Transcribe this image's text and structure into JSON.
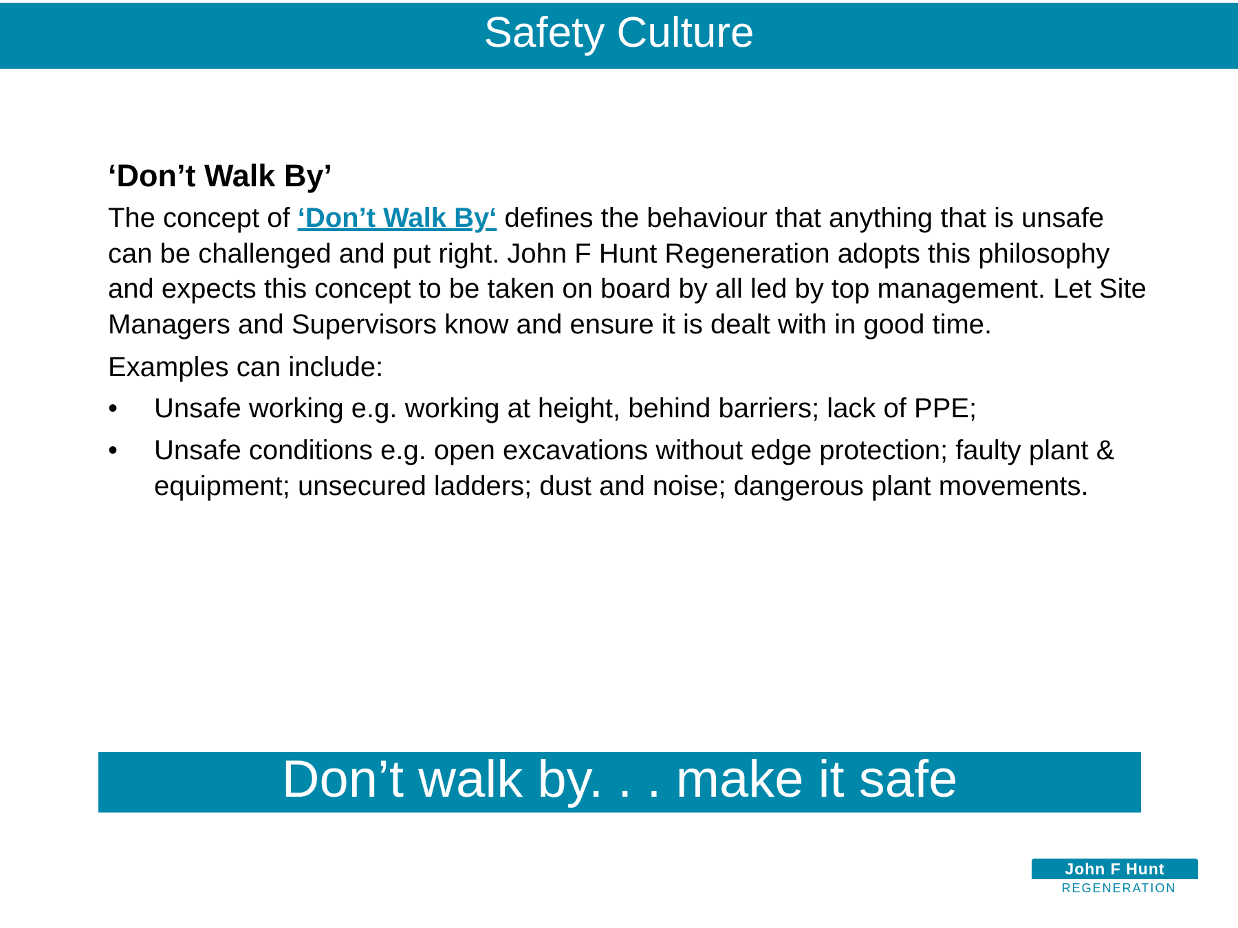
{
  "header": {
    "title": "Safety Culture"
  },
  "section": {
    "heading": "‘Don’t Walk By’",
    "paragraph_prefix": "The concept of ",
    "paragraph_link": "‘Don’t Walk By‘",
    "paragraph_suffix": " defines the behaviour that anything that is unsafe can be challenged and put right. John F Hunt Regeneration adopts this philosophy and expects this concept to be taken on board by all led by top management. Let Site Managers and Supervisors know and ensure it is dealt with in good time.",
    "examples_intro": "Examples can include:",
    "bullet_symbol": "•",
    "bullets": [
      "Unsafe working e.g. working at height, behind barriers; lack of PPE;",
      "Unsafe conditions e.g. open excavations without edge protection; faulty plant & equipment; unsecured ladders; dust and noise; dangerous plant movements."
    ]
  },
  "slogan": {
    "text": "Don’t walk by. . . make it safe"
  },
  "logo": {
    "line1": "John F Hunt",
    "line2": "REGENERATION"
  },
  "colors": {
    "brand_teal": "#0088ab",
    "link": "#0a87b0",
    "text": "#000000",
    "background": "#ffffff"
  }
}
